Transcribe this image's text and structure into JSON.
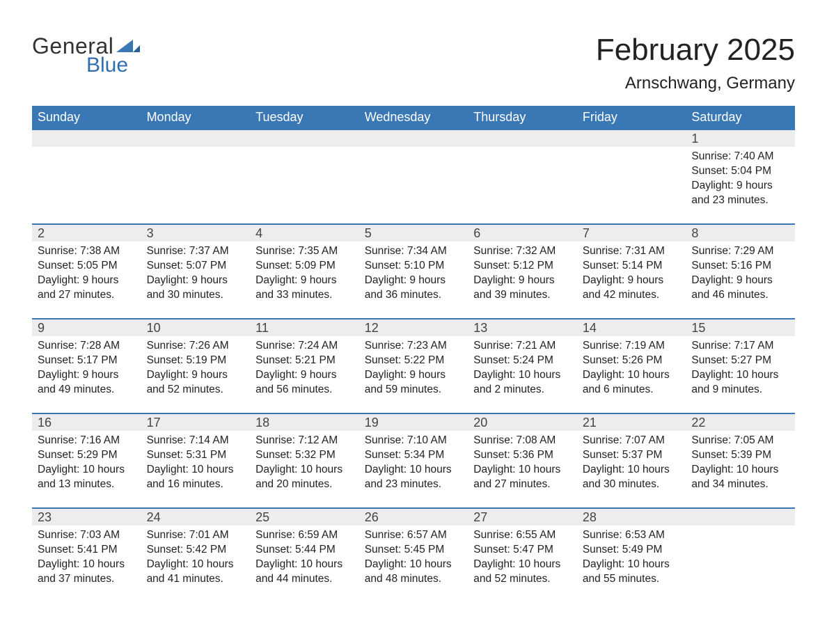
{
  "brand": {
    "general": "General",
    "blue": "Blue",
    "accent_color": "#3a78b5"
  },
  "title": "February 2025",
  "location": "Arnschwang, Germany",
  "day_headers": [
    "Sunday",
    "Monday",
    "Tuesday",
    "Wednesday",
    "Thursday",
    "Friday",
    "Saturday"
  ],
  "colors": {
    "header_bg": "#3a78b5",
    "header_text": "#ffffff",
    "row_divider": "#3a78b5",
    "daynum_bg": "#ededed",
    "text": "#222222",
    "background": "#ffffff"
  },
  "typography": {
    "title_fontsize": 44,
    "location_fontsize": 24,
    "dayheader_fontsize": 18,
    "daynum_fontsize": 18,
    "detail_fontsize": 15.5
  },
  "labels": {
    "sunrise": "Sunrise: ",
    "sunset": "Sunset: ",
    "daylight": "Daylight: "
  },
  "weeks": [
    [
      null,
      null,
      null,
      null,
      null,
      null,
      {
        "day": "1",
        "sunrise": "7:40 AM",
        "sunset": "5:04 PM",
        "daylight": "9 hours and 23 minutes."
      }
    ],
    [
      {
        "day": "2",
        "sunrise": "7:38 AM",
        "sunset": "5:05 PM",
        "daylight": "9 hours and 27 minutes."
      },
      {
        "day": "3",
        "sunrise": "7:37 AM",
        "sunset": "5:07 PM",
        "daylight": "9 hours and 30 minutes."
      },
      {
        "day": "4",
        "sunrise": "7:35 AM",
        "sunset": "5:09 PM",
        "daylight": "9 hours and 33 minutes."
      },
      {
        "day": "5",
        "sunrise": "7:34 AM",
        "sunset": "5:10 PM",
        "daylight": "9 hours and 36 minutes."
      },
      {
        "day": "6",
        "sunrise": "7:32 AM",
        "sunset": "5:12 PM",
        "daylight": "9 hours and 39 minutes."
      },
      {
        "day": "7",
        "sunrise": "7:31 AM",
        "sunset": "5:14 PM",
        "daylight": "9 hours and 42 minutes."
      },
      {
        "day": "8",
        "sunrise": "7:29 AM",
        "sunset": "5:16 PM",
        "daylight": "9 hours and 46 minutes."
      }
    ],
    [
      {
        "day": "9",
        "sunrise": "7:28 AM",
        "sunset": "5:17 PM",
        "daylight": "9 hours and 49 minutes."
      },
      {
        "day": "10",
        "sunrise": "7:26 AM",
        "sunset": "5:19 PM",
        "daylight": "9 hours and 52 minutes."
      },
      {
        "day": "11",
        "sunrise": "7:24 AM",
        "sunset": "5:21 PM",
        "daylight": "9 hours and 56 minutes."
      },
      {
        "day": "12",
        "sunrise": "7:23 AM",
        "sunset": "5:22 PM",
        "daylight": "9 hours and 59 minutes."
      },
      {
        "day": "13",
        "sunrise": "7:21 AM",
        "sunset": "5:24 PM",
        "daylight": "10 hours and 2 minutes."
      },
      {
        "day": "14",
        "sunrise": "7:19 AM",
        "sunset": "5:26 PM",
        "daylight": "10 hours and 6 minutes."
      },
      {
        "day": "15",
        "sunrise": "7:17 AM",
        "sunset": "5:27 PM",
        "daylight": "10 hours and 9 minutes."
      }
    ],
    [
      {
        "day": "16",
        "sunrise": "7:16 AM",
        "sunset": "5:29 PM",
        "daylight": "10 hours and 13 minutes."
      },
      {
        "day": "17",
        "sunrise": "7:14 AM",
        "sunset": "5:31 PM",
        "daylight": "10 hours and 16 minutes."
      },
      {
        "day": "18",
        "sunrise": "7:12 AM",
        "sunset": "5:32 PM",
        "daylight": "10 hours and 20 minutes."
      },
      {
        "day": "19",
        "sunrise": "7:10 AM",
        "sunset": "5:34 PM",
        "daylight": "10 hours and 23 minutes."
      },
      {
        "day": "20",
        "sunrise": "7:08 AM",
        "sunset": "5:36 PM",
        "daylight": "10 hours and 27 minutes."
      },
      {
        "day": "21",
        "sunrise": "7:07 AM",
        "sunset": "5:37 PM",
        "daylight": "10 hours and 30 minutes."
      },
      {
        "day": "22",
        "sunrise": "7:05 AM",
        "sunset": "5:39 PM",
        "daylight": "10 hours and 34 minutes."
      }
    ],
    [
      {
        "day": "23",
        "sunrise": "7:03 AM",
        "sunset": "5:41 PM",
        "daylight": "10 hours and 37 minutes."
      },
      {
        "day": "24",
        "sunrise": "7:01 AM",
        "sunset": "5:42 PM",
        "daylight": "10 hours and 41 minutes."
      },
      {
        "day": "25",
        "sunrise": "6:59 AM",
        "sunset": "5:44 PM",
        "daylight": "10 hours and 44 minutes."
      },
      {
        "day": "26",
        "sunrise": "6:57 AM",
        "sunset": "5:45 PM",
        "daylight": "10 hours and 48 minutes."
      },
      {
        "day": "27",
        "sunrise": "6:55 AM",
        "sunset": "5:47 PM",
        "daylight": "10 hours and 52 minutes."
      },
      {
        "day": "28",
        "sunrise": "6:53 AM",
        "sunset": "5:49 PM",
        "daylight": "10 hours and 55 minutes."
      },
      null
    ]
  ]
}
